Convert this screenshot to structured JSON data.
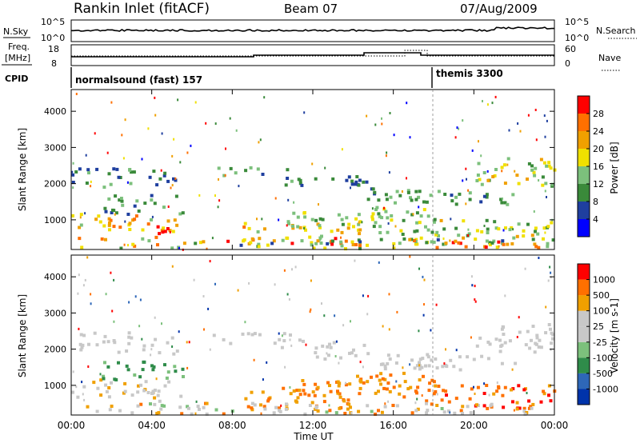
{
  "header": {
    "title": "Rankin Inlet (fitACF)",
    "beam": "Beam 07",
    "date": "07/Aug/2009"
  },
  "aux_labels": {
    "nsky": "N.Sky",
    "nsky_ticks": [
      "10^5",
      "10^0"
    ],
    "nsearch": "N.Search",
    "nsearch_ticks": [
      "10^5",
      "10^0"
    ],
    "freq": "Freq.",
    "freq_unit": "[MHz]",
    "freq_ticks": [
      "18",
      "8"
    ],
    "nave": "Nave",
    "nave_ticks": [
      "60",
      "0"
    ],
    "cpid": "CPID",
    "cpid_1": "normalsound (fast) 157",
    "cpid_2": "themis 3300"
  },
  "colors": {
    "power": [
      "#0000ff",
      "#1f3f9f",
      "#3a8a3a",
      "#7cc07c",
      "#f0e000",
      "#f0a000",
      "#ff7000",
      "#ff0000"
    ],
    "velocity": [
      "#0033aa",
      "#2e67b8",
      "#2f8c4a",
      "#7cc07c",
      "#c8c8c8",
      "#c8c8c8",
      "#f0a000",
      "#ff7000",
      "#ff0000"
    ]
  },
  "chart_data": [
    {
      "type": "heatmap",
      "quantity": "Power",
      "x": [
        "00:00",
        "04:00",
        "08:00",
        "12:00",
        "16:00",
        "20:00",
        "00:00"
      ],
      "xlim": [
        0,
        24
      ],
      "ylim": [
        180,
        4600
      ],
      "yticks": [
        "1000",
        "2000",
        "3000",
        "4000"
      ],
      "ylabel": "Slant Range [km]",
      "colorbar_label": "Power [dB]",
      "colorbar_ticks": [
        "4",
        "8",
        "12",
        "16",
        "20",
        "24",
        "28"
      ]
    },
    {
      "type": "heatmap",
      "quantity": "Velocity",
      "x": [
        "00:00",
        "04:00",
        "08:00",
        "12:00",
        "16:00",
        "20:00",
        "00:00"
      ],
      "xlim": [
        0,
        24
      ],
      "ylim": [
        180,
        4600
      ],
      "yticks": [
        "1000",
        "2000",
        "3000",
        "4000"
      ],
      "ylabel": "Slant Range [km]",
      "xlabel": "Time UT",
      "colorbar_label": "Velocity [m s-1]",
      "colorbar_ticks": [
        "1000",
        "500",
        "100",
        "25",
        "-25",
        "-100",
        "-500",
        "-1000"
      ]
    }
  ]
}
